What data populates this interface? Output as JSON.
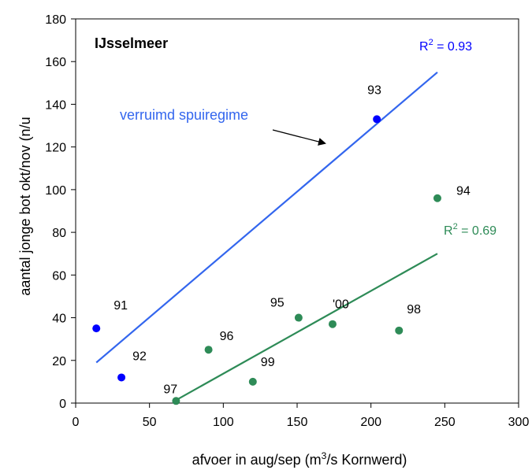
{
  "chart_data": {
    "type": "scatter",
    "title": "IJsselmeer",
    "xlabel_parts": [
      "afvoer in aug/sep (m",
      "3",
      "/s Kornwerd)"
    ],
    "ylabel": "aantal jonge bot okt/nov (n/u",
    "xlim": [
      0,
      300
    ],
    "ylim": [
      0,
      180
    ],
    "x_ticks": [
      0,
      50,
      100,
      150,
      200,
      250,
      300
    ],
    "y_ticks": [
      0,
      20,
      40,
      60,
      80,
      100,
      120,
      140,
      160,
      180
    ],
    "grid": false,
    "series": [
      {
        "color": "#0000ff",
        "line_color": "#3366ee",
        "points": [
          {
            "label": "91",
            "x": 14,
            "y": 35
          },
          {
            "label": "92",
            "x": 31,
            "y": 12
          },
          {
            "label": "93",
            "x": 204,
            "y": 133
          }
        ],
        "trend": {
          "x": [
            14,
            245
          ],
          "y": [
            19,
            155
          ]
        },
        "r2_label": {
          "prefix": "R",
          "sup": "2",
          "suffix": " = 0.93"
        }
      },
      {
        "color": "#2e8b57",
        "line_color": "#2e8b57",
        "points": [
          {
            "label": "94",
            "x": 245,
            "y": 96
          },
          {
            "label": "95",
            "x": 151,
            "y": 40
          },
          {
            "label": "96",
            "x": 90,
            "y": 25
          },
          {
            "label": "97",
            "x": 68,
            "y": 1
          },
          {
            "label": "98",
            "x": 219,
            "y": 34
          },
          {
            "label": "99",
            "x": 120,
            "y": 10
          },
          {
            "label": "'00",
            "x": 174,
            "y": 37
          }
        ],
        "trend": {
          "x": [
            67,
            245
          ],
          "y": [
            1,
            70
          ]
        },
        "r2_label": {
          "prefix": "R",
          "sup": "2",
          "suffix": " = 0.69"
        }
      }
    ],
    "annotation": {
      "text": "verruimd spuiregime",
      "color": "#3366ee"
    }
  }
}
